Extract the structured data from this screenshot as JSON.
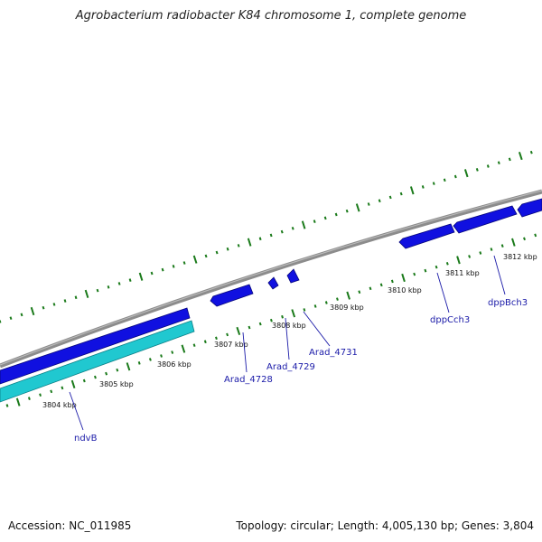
{
  "title": "Agrobacterium radiobacter K84 chromosome 1, complete genome",
  "footer": {
    "accession": "Accession: NC_011985",
    "summary": "Topology: circular; Length: 4,005,130 bp; Genes: 3,804"
  },
  "colors": {
    "backbone": "#8c8c8c",
    "forward_gene": "#1010e0",
    "reverse_gene": "#20c8d0",
    "tick": "#1a7a1a",
    "label": "#1a1aa8"
  },
  "kbp_labels": [
    "3804 kbp",
    "3805 kbp",
    "3806 kbp",
    "3807 kbp",
    "3808 kbp",
    "3809 kbp",
    "3810 kbp",
    "3811 kbp",
    "3812 kbp"
  ],
  "gene_labels": [
    "ndvB",
    "Arad_4728",
    "Arad_4729",
    "Arad_4731",
    "dppCch3",
    "dppBch3"
  ]
}
